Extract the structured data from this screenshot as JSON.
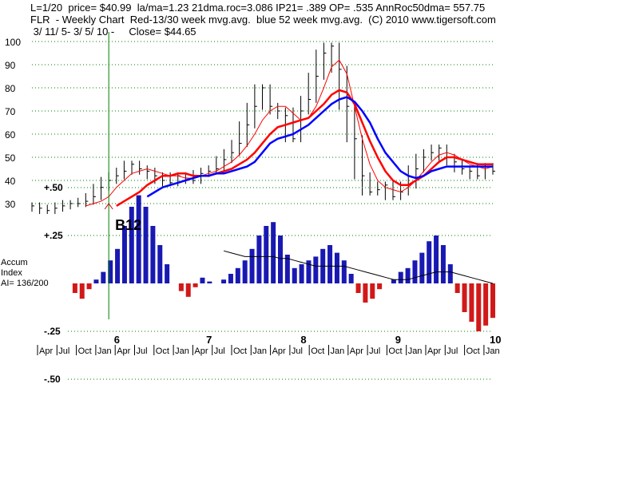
{
  "header": {
    "line1": "L=1/20  price= $40.99  la/ma=1.23 21dma.roc=3.086 IP21= .389 OP= .535 AnnRoc50dma= 557.75",
    "line2": "FLR  - Weekly Chart  Red-13/30 week mvg.avg.  blue 52 week mvg.avg.  (C) 2010 www.tigersoft.com",
    "line3": " 3/ 11/ 5- 3/ 5/ 10 -     Close= $44.65"
  },
  "colors": {
    "price": "#000000",
    "ma13": "#ff0000",
    "ma30": "#ff0000",
    "ma52": "#0000ff",
    "accum_pos": "#0000aa",
    "accum_neg": "#cc0000",
    "signal": "#008000",
    "grid": "#008000"
  },
  "chart_data": [
    {
      "type": "line",
      "title": "FLR  - Weekly Chart",
      "ylim": [
        25,
        102
      ],
      "yticks": [
        100,
        90,
        80,
        70,
        60,
        50,
        40,
        30
      ],
      "x": [
        "2005-03-11",
        "2005-04",
        "2005-05",
        "2005-06",
        "2005-07",
        "2005-08",
        "2005-09",
        "2005-10",
        "2005-11",
        "2005-12",
        "2006-01",
        "2006-02",
        "2006-03",
        "2006-04",
        "2006-05",
        "2006-06",
        "2006-07",
        "2006-08",
        "2006-09",
        "2006-10",
        "2006-11",
        "2006-12",
        "2007-01",
        "2007-02",
        "2007-03",
        "2007-04",
        "2007-05",
        "2007-06",
        "2007-07",
        "2007-08",
        "2007-09",
        "2007-10",
        "2007-11",
        "2007-12",
        "2008-01",
        "2008-02",
        "2008-03",
        "2008-04",
        "2008-05",
        "2008-06",
        "2008-07",
        "2008-08",
        "2008-09",
        "2008-10",
        "2008-11",
        "2008-12",
        "2009-01",
        "2009-02",
        "2009-03",
        "2009-04",
        "2009-05",
        "2009-06",
        "2009-07",
        "2009-08",
        "2009-09",
        "2009-10",
        "2009-11",
        "2009-12",
        "2010-01",
        "2010-02",
        "2010-03-05"
      ],
      "series": [
        {
          "name": "Price",
          "values": [
            29,
            28,
            27,
            28,
            29,
            30,
            30,
            31,
            33,
            37,
            40,
            42,
            44,
            47,
            45,
            44,
            42,
            40,
            39,
            42,
            41,
            40,
            43,
            44,
            45,
            49,
            52,
            56,
            64,
            72,
            80,
            72,
            70,
            68,
            58,
            70,
            75,
            85,
            95,
            98,
            88,
            72,
            58,
            42,
            35,
            36,
            38,
            33,
            35,
            38,
            45,
            50,
            52,
            54,
            50,
            48,
            45,
            44,
            42,
            46,
            44
          ]
        },
        {
          "name": "13 week mvg.avg.",
          "values": [
            null,
            null,
            null,
            null,
            null,
            null,
            null,
            29,
            30,
            31,
            33,
            37,
            40,
            43,
            44,
            45,
            44,
            43,
            42,
            42,
            41,
            41,
            42,
            43,
            44,
            46,
            48,
            51,
            55,
            60,
            66,
            70,
            72,
            72,
            69,
            66,
            67,
            72,
            80,
            89,
            92,
            86,
            72,
            58,
            47,
            40,
            37,
            36,
            35,
            37,
            40,
            44,
            48,
            51,
            52,
            51,
            49,
            47,
            46,
            45,
            46
          ]
        },
        {
          "name": "30 week mvg.avg.",
          "values": [
            null,
            null,
            null,
            null,
            null,
            null,
            null,
            null,
            null,
            null,
            null,
            29,
            31,
            33,
            35,
            38,
            40,
            42,
            42,
            43,
            43,
            42,
            42,
            42,
            43,
            44,
            45,
            47,
            49,
            52,
            56,
            60,
            63,
            64,
            65,
            66,
            67,
            70,
            73,
            77,
            79,
            78,
            73,
            65,
            57,
            50,
            44,
            40,
            38,
            38,
            40,
            42,
            45,
            48,
            50,
            50,
            49,
            48,
            47,
            47,
            47
          ]
        },
        {
          "name": "52 week mvg.avg.",
          "values": [
            null,
            null,
            null,
            null,
            null,
            null,
            null,
            null,
            null,
            null,
            null,
            null,
            null,
            null,
            null,
            33,
            35,
            37,
            38,
            39,
            40,
            41,
            42,
            42,
            43,
            43,
            44,
            45,
            46,
            48,
            52,
            56,
            58,
            59,
            60,
            62,
            64,
            67,
            70,
            73,
            75,
            76,
            74,
            70,
            65,
            58,
            52,
            48,
            44,
            42,
            41,
            42,
            44,
            45,
            46,
            46,
            46,
            46,
            46,
            46,
            46
          ]
        }
      ]
    },
    {
      "type": "bar",
      "title": "Accum Index",
      "ylim": [
        -0.5,
        0.5
      ],
      "yticks": [
        0.5,
        0.25,
        0,
        -0.25,
        -0.5
      ],
      "ytick_labels": [
        "+.50",
        "+.25",
        "",
        "-.25",
        "-.50"
      ],
      "values": [
        0,
        -0.05,
        -0.08,
        -0.03,
        0.02,
        0.06,
        0.12,
        0.18,
        0.3,
        0.4,
        0.46,
        0.4,
        0.3,
        0.2,
        0.1,
        0.0,
        -0.04,
        -0.07,
        -0.02,
        0.03,
        0.01,
        0.0,
        0.02,
        0.05,
        0.08,
        0.12,
        0.18,
        0.25,
        0.3,
        0.32,
        0.25,
        0.15,
        0.08,
        0.1,
        0.12,
        0.14,
        0.18,
        0.2,
        0.16,
        0.12,
        0.05,
        -0.05,
        -0.1,
        -0.08,
        -0.03,
        0.0,
        0.02,
        0.06,
        0.08,
        0.12,
        0.16,
        0.22,
        0.25,
        0.2,
        0.1,
        -0.05,
        -0.15,
        -0.2,
        -0.25,
        -0.22,
        -0.18
      ],
      "ma_values": [
        null,
        null,
        null,
        null,
        null,
        null,
        null,
        null,
        null,
        null,
        null,
        null,
        null,
        null,
        null,
        null,
        null,
        null,
        null,
        null,
        null,
        null,
        0.17,
        0.16,
        0.15,
        0.14,
        0.14,
        0.14,
        0.14,
        0.14,
        0.13,
        0.13,
        0.12,
        0.11,
        0.1,
        0.09,
        0.09,
        0.09,
        0.09,
        0.09,
        0.08,
        0.07,
        0.06,
        0.05,
        0.04,
        0.03,
        0.02,
        0.02,
        0.02,
        0.03,
        0.04,
        0.05,
        0.06,
        0.06,
        0.06,
        0.05,
        0.04,
        0.03,
        0.02,
        0.01,
        0.0
      ]
    }
  ],
  "xaxis": {
    "year_labels": [
      "6",
      "7",
      "8",
      "9",
      "10"
    ],
    "month_labels": [
      "Apr",
      "Jul",
      "Oct",
      "Jan",
      "Apr",
      "Jul",
      "Oct",
      "Jan",
      "Apr",
      "Jul",
      "Oct",
      "Jan",
      "Apr",
      "Jul",
      "Oct",
      "Jan",
      "Apr",
      "Jul",
      "Oct",
      "Jan",
      "Apr",
      "Jul",
      "Oct",
      "Jan"
    ]
  },
  "annotations": {
    "signal_label": "B12",
    "signal_date": "2006-01",
    "accum_label_1": "Accum",
    "accum_label_2": "Index",
    "accum_label_3": "AI= 136/200"
  }
}
